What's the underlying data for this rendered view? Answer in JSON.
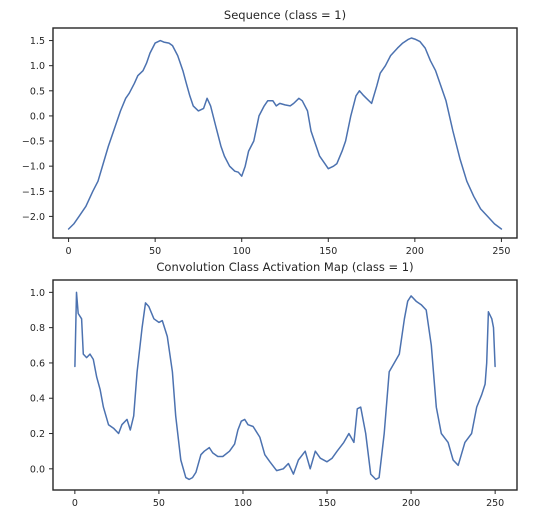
{
  "chart_data": [
    {
      "type": "line",
      "title": "Sequence (class = 1)",
      "xlabel": "",
      "ylabel": "",
      "xlim": [
        -9,
        259
      ],
      "ylim": [
        -2.43,
        1.75
      ],
      "xticks": [
        0,
        50,
        100,
        150,
        200,
        250
      ],
      "yticks": [
        -2.0,
        -1.5,
        -1.0,
        -0.5,
        0.0,
        0.5,
        1.0,
        1.5
      ],
      "ytick_labels": [
        "−2.0",
        "−1.5",
        "−1.0",
        "−0.5",
        "0.0",
        "0.5",
        "1.0",
        "1.5"
      ],
      "grid": false,
      "series": [
        {
          "color": "#4c72b0",
          "x": [
            0,
            3,
            6,
            10,
            14,
            17,
            20,
            23,
            26,
            30,
            33,
            35,
            38,
            40,
            43,
            45,
            47,
            50,
            53,
            55,
            58,
            60,
            63,
            66,
            68,
            70,
            72,
            75,
            78,
            80,
            82,
            85,
            88,
            90,
            93,
            96,
            98,
            100,
            102,
            104,
            107,
            110,
            113,
            115,
            118,
            120,
            122,
            125,
            128,
            130,
            133,
            135,
            138,
            140,
            142,
            145,
            148,
            150,
            153,
            155,
            158,
            160,
            163,
            166,
            168,
            170,
            172,
            175,
            178,
            180,
            183,
            186,
            190,
            193,
            196,
            198,
            200,
            203,
            206,
            209,
            212,
            215,
            218,
            222,
            226,
            230,
            234,
            238,
            242,
            246,
            250
          ],
          "y": [
            -2.25,
            -2.15,
            -2.0,
            -1.8,
            -1.5,
            -1.3,
            -0.95,
            -0.6,
            -0.3,
            0.1,
            0.35,
            0.45,
            0.65,
            0.8,
            0.9,
            1.05,
            1.25,
            1.45,
            1.5,
            1.47,
            1.45,
            1.4,
            1.2,
            0.9,
            0.65,
            0.4,
            0.2,
            0.1,
            0.15,
            0.35,
            0.2,
            -0.2,
            -0.6,
            -0.8,
            -1.0,
            -1.1,
            -1.12,
            -1.2,
            -1.0,
            -0.7,
            -0.5,
            0.0,
            0.2,
            0.3,
            0.3,
            0.2,
            0.25,
            0.22,
            0.2,
            0.25,
            0.35,
            0.3,
            0.1,
            -0.3,
            -0.5,
            -0.8,
            -0.95,
            -1.05,
            -1.0,
            -0.95,
            -0.7,
            -0.5,
            0.0,
            0.4,
            0.5,
            0.42,
            0.35,
            0.25,
            0.6,
            0.85,
            1.0,
            1.2,
            1.35,
            1.45,
            1.52,
            1.55,
            1.53,
            1.48,
            1.35,
            1.1,
            0.9,
            0.6,
            0.3,
            -0.3,
            -0.85,
            -1.3,
            -1.6,
            -1.85,
            -2.0,
            -2.15,
            -2.25
          ]
        }
      ]
    },
    {
      "type": "line",
      "title": "Convolution Class Activation Map (class = 1)",
      "xlabel": "",
      "ylabel": "",
      "xlim": [
        -13,
        263
      ],
      "ylim": [
        -0.12,
        1.07
      ],
      "xticks": [
        0,
        50,
        100,
        150,
        200,
        250
      ],
      "yticks": [
        0.0,
        0.2,
        0.4,
        0.6,
        0.8,
        1.0
      ],
      "ytick_labels": [
        "0.0",
        "0.2",
        "0.4",
        "0.6",
        "0.8",
        "1.0"
      ],
      "grid": false,
      "series": [
        {
          "color": "#4c72b0",
          "x": [
            0,
            1,
            2,
            4,
            5,
            7,
            9,
            11,
            13,
            15,
            17,
            20,
            23,
            26,
            28,
            31,
            33,
            35,
            37,
            40,
            42,
            44,
            47,
            50,
            52,
            55,
            58,
            60,
            63,
            66,
            68,
            70,
            72,
            75,
            77,
            80,
            82,
            85,
            88,
            92,
            95,
            97,
            99,
            101,
            103,
            106,
            110,
            113,
            116,
            120,
            124,
            127,
            130,
            133,
            137,
            140,
            143,
            146,
            150,
            153,
            156,
            160,
            163,
            166,
            168,
            170,
            173,
            176,
            179,
            181,
            184,
            187,
            190,
            193,
            196,
            198,
            200,
            203,
            206,
            209,
            212,
            215,
            218,
            222,
            225,
            228,
            232,
            236,
            239,
            242,
            244,
            245,
            246,
            247,
            248,
            249,
            250
          ],
          "y": [
            0.58,
            1.0,
            0.88,
            0.85,
            0.65,
            0.63,
            0.65,
            0.62,
            0.52,
            0.45,
            0.35,
            0.25,
            0.23,
            0.2,
            0.25,
            0.28,
            0.22,
            0.3,
            0.55,
            0.8,
            0.94,
            0.92,
            0.85,
            0.83,
            0.84,
            0.75,
            0.55,
            0.3,
            0.05,
            -0.05,
            -0.06,
            -0.05,
            -0.02,
            0.08,
            0.1,
            0.12,
            0.09,
            0.07,
            0.07,
            0.1,
            0.14,
            0.22,
            0.27,
            0.28,
            0.25,
            0.24,
            0.18,
            0.08,
            0.04,
            -0.01,
            0.0,
            0.03,
            -0.03,
            0.05,
            0.1,
            0.0,
            0.1,
            0.06,
            0.04,
            0.06,
            0.1,
            0.15,
            0.2,
            0.15,
            0.34,
            0.35,
            0.2,
            -0.03,
            -0.06,
            -0.05,
            0.2,
            0.55,
            0.6,
            0.65,
            0.85,
            0.95,
            0.98,
            0.95,
            0.93,
            0.9,
            0.7,
            0.35,
            0.2,
            0.15,
            0.05,
            0.02,
            0.15,
            0.2,
            0.35,
            0.42,
            0.48,
            0.6,
            0.89,
            0.87,
            0.85,
            0.8,
            0.58
          ]
        }
      ]
    }
  ]
}
